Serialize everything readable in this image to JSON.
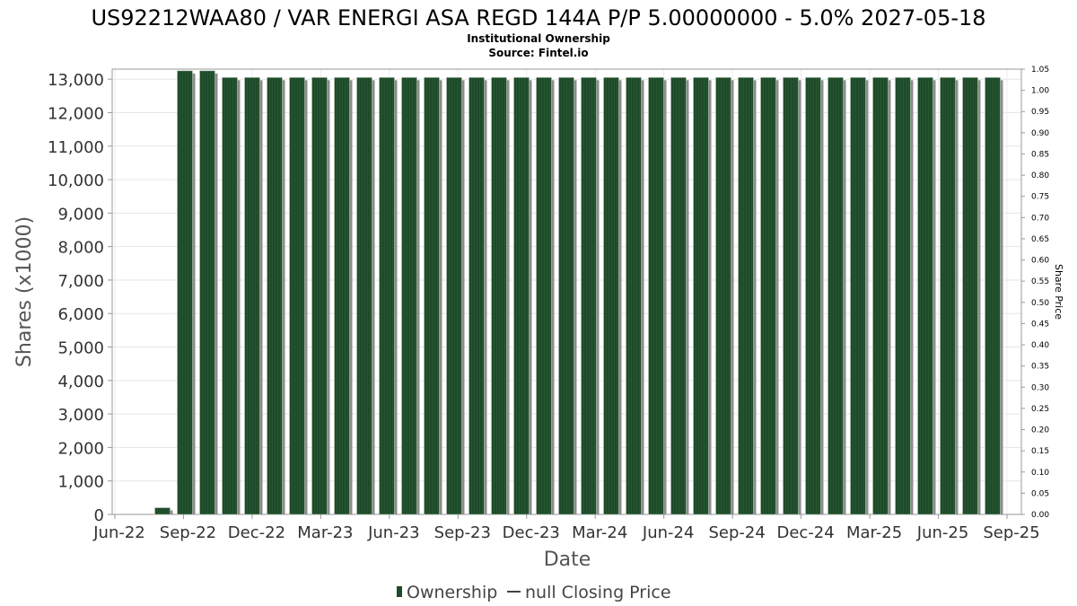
{
  "chart_data": {
    "type": "bar",
    "title": "US92212WAA80 / VAR ENERGI ASA REGD 144A P/P 5.00000000 - 5.0% 2027-05-18",
    "subtitle": "Institutional Ownership",
    "source": "Source: Fintel.io",
    "xlabel": "Date",
    "ylabel": "Shares (x1000)",
    "y2label": "Share Price",
    "ylim": [
      0,
      13300
    ],
    "y2lim": [
      0,
      1.05
    ],
    "y_ticks": [
      "0",
      "1,000",
      "2,000",
      "3,000",
      "4,000",
      "5,000",
      "6,000",
      "7,000",
      "8,000",
      "9,000",
      "10,000",
      "11,000",
      "12,000",
      "13,000"
    ],
    "y2_ticks": [
      "0.00",
      "0.05",
      "0.10",
      "0.15",
      "0.20",
      "0.25",
      "0.30",
      "0.35",
      "0.40",
      "0.45",
      "0.50",
      "0.55",
      "0.60",
      "0.65",
      "0.70",
      "0.75",
      "0.80",
      "0.85",
      "0.90",
      "0.95",
      "1.00",
      "1.05"
    ],
    "x_ticks": [
      "Jun-22",
      "Sep-22",
      "Dec-22",
      "Mar-23",
      "Jun-23",
      "Sep-23",
      "Dec-23",
      "Mar-24",
      "Jun-24",
      "Sep-24",
      "Dec-24",
      "Mar-25",
      "Jun-25",
      "Sep-25"
    ],
    "series": [
      {
        "name": "Ownership",
        "color": "#1f4a2a",
        "values": [
          200,
          13250,
          13250,
          13050,
          13050,
          13050,
          13050,
          13050,
          13050,
          13050,
          13050,
          13050,
          13050,
          13050,
          13050,
          13050,
          13050,
          13050,
          13050,
          13050,
          13050,
          13050,
          13050,
          13050,
          13050,
          13050,
          13050,
          13050,
          13050,
          13050,
          13050,
          13050,
          13050,
          13050,
          13050,
          13050,
          13050,
          13050
        ]
      }
    ],
    "legend": {
      "position": "bottom",
      "items": [
        {
          "label": "Ownership",
          "marker": "bar",
          "color": "#1f4a2a"
        },
        {
          "label": "null Closing Price",
          "marker": "line",
          "color": "#444444"
        }
      ]
    },
    "grid": true
  }
}
